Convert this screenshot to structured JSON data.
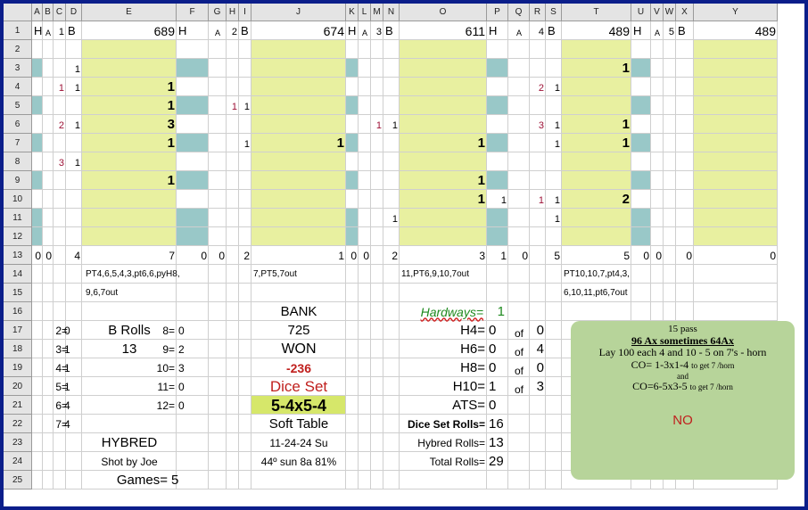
{
  "column_headers": [
    "A",
    "B",
    "C",
    "D",
    "E",
    "F",
    "G",
    "H",
    "I",
    "J",
    "K",
    "L",
    "M",
    "N",
    "O",
    "P",
    "Q",
    "R",
    "S",
    "T",
    "U",
    "V",
    "W",
    "X",
    "Y"
  ],
  "row_headers": [
    "1",
    "2",
    "3",
    "4",
    "5",
    "6",
    "7",
    "8",
    "9",
    "10",
    "11",
    "12",
    "13",
    "14",
    "15",
    "16",
    "17",
    "18",
    "19",
    "20",
    "21",
    "22",
    "23",
    "24",
    "25"
  ],
  "colors": {
    "frame": "#0b1e8a",
    "yellow_fill": "#e8f0a0",
    "teal_fill": "#99c8c8",
    "green_fill": "#d6e76a",
    "note_fill": "#b7d49a",
    "red_text": "#c0201e",
    "maroon_text": "#9c1035",
    "hardways_green": "#1f8a1f"
  },
  "header_row": {
    "section1": {
      "h": "H",
      "a": "A",
      "a_val": "1",
      "b": "B",
      "total": "689"
    },
    "section2": {
      "h": "H",
      "a": "A",
      "a_val": "2",
      "b": "B",
      "total": "674"
    },
    "section3": {
      "h": "H",
      "a": "A",
      "a_val": "3",
      "b": "B",
      "total": "611"
    },
    "section4": {
      "h": "H",
      "a": "A",
      "a_val": "4",
      "b": "B",
      "total": "489"
    },
    "section5": {
      "h": "H",
      "a": "A",
      "a_val": "5",
      "b": "B",
      "total": "489"
    }
  },
  "grid_values": [
    {
      "cell": "D3",
      "v": "1"
    },
    {
      "cell": "T3",
      "v": "1"
    },
    {
      "cell": "C4",
      "v": "1"
    },
    {
      "cell": "D4",
      "v": "1"
    },
    {
      "cell": "E4",
      "v": "1"
    },
    {
      "cell": "R4",
      "v": "2"
    },
    {
      "cell": "S4",
      "v": "1"
    },
    {
      "cell": "E5",
      "v": "1"
    },
    {
      "cell": "H5",
      "v": "1"
    },
    {
      "cell": "I5",
      "v": "1"
    },
    {
      "cell": "C6",
      "v": "2"
    },
    {
      "cell": "D6",
      "v": "1"
    },
    {
      "cell": "E6",
      "v": "3"
    },
    {
      "cell": "M6",
      "v": "1"
    },
    {
      "cell": "N6",
      "v": "1"
    },
    {
      "cell": "R6",
      "v": "3"
    },
    {
      "cell": "S6",
      "v": "1"
    },
    {
      "cell": "T6",
      "v": "1"
    },
    {
      "cell": "E7",
      "v": "1"
    },
    {
      "cell": "I7",
      "v": "1"
    },
    {
      "cell": "J7",
      "v": "1"
    },
    {
      "cell": "O7",
      "v": "1"
    },
    {
      "cell": "S7",
      "v": "1"
    },
    {
      "cell": "T7",
      "v": "1"
    },
    {
      "cell": "C8",
      "v": "3"
    },
    {
      "cell": "D8",
      "v": "1"
    },
    {
      "cell": "E9",
      "v": "1"
    },
    {
      "cell": "O9",
      "v": "1"
    },
    {
      "cell": "O10",
      "v": "1"
    },
    {
      "cell": "P10",
      "v": "1"
    },
    {
      "cell": "R10",
      "v": "1"
    },
    {
      "cell": "S10",
      "v": "1"
    },
    {
      "cell": "T10",
      "v": "2"
    },
    {
      "cell": "N11",
      "v": "1"
    },
    {
      "cell": "S11",
      "v": "1"
    }
  ],
  "totals_row": {
    "A": "0",
    "B": "0",
    "D": "4",
    "E": "7",
    "F": "0",
    "G": "0",
    "I": "2",
    "J": "1",
    "K": "0",
    "L": "0",
    "N": "2",
    "O": "3",
    "P": "1",
    "Q": "0",
    "S": "5",
    "T": "5",
    "U": "0",
    "V": "0",
    "X": "0",
    "Y": "0"
  },
  "sequences": {
    "s1_line1": "PT4,6,5,4,3,pt6,6,pyH8,",
    "s1_line2": "9,6,7out",
    "s2_line1": "7,PT5,7out",
    "s3_line1": "11,PT6,9,10,7out",
    "s4_line1": "PT10,10,7,pt4,3,",
    "s4_line2": "6,10,11,pt6,7out"
  },
  "roll_counts_left": [
    {
      "label": "2=",
      "value": "0"
    },
    {
      "label": "3=",
      "value": "1"
    },
    {
      "label": "4=",
      "value": "1"
    },
    {
      "label": "5=",
      "value": "1"
    },
    {
      "label": "6=",
      "value": "4"
    },
    {
      "label": "7=",
      "value": "4"
    }
  ],
  "roll_counts_right": [
    {
      "label": "8=",
      "value": "0"
    },
    {
      "label": "9=",
      "value": "2"
    },
    {
      "label": "10=",
      "value": "3"
    },
    {
      "label": "11=",
      "value": "0"
    },
    {
      "label": "12=",
      "value": "0"
    }
  ],
  "b_rolls": {
    "label": "B Rolls",
    "value": "13"
  },
  "hybred": "HYBRED",
  "shooter": "Shot by Joe",
  "games": {
    "label": "Games=",
    "value": "5"
  },
  "center": {
    "bank_label": "BANK",
    "bank_value": "725",
    "won_label": "WON",
    "won_value": "-236",
    "dice_set_label": "Dice Set",
    "dice_set_value": "5-4x5-4",
    "table": "Soft Table",
    "date": "11-24-24 Su",
    "weather": "44º sun 8a 81%"
  },
  "hardways": {
    "title": "Hardways=",
    "total": "1",
    "of": "of",
    "rows": [
      {
        "label": "H4=",
        "value": "0",
        "of_value": "0"
      },
      {
        "label": "H6=",
        "value": "0",
        "of_value": "4"
      },
      {
        "label": "H8=",
        "value": "0",
        "of_value": "0"
      },
      {
        "label": "H10=",
        "value": "1",
        "of_value": "3"
      }
    ]
  },
  "ats": {
    "label": "ATS=",
    "value": "0"
  },
  "roll_totals": [
    {
      "label": "Dice Set Rolls=",
      "value": "16"
    },
    {
      "label": "Hybred Rolls=",
      "value": "13"
    },
    {
      "label": "Total Rolls=",
      "value": "29"
    }
  ],
  "note": {
    "line1": "15 pass",
    "line2": "96 Ax sometimes 64Ax",
    "line3": "Lay  100  each 4 and 10 - 5 on 7's - horn",
    "line4_main": "CO= 1-3x1-4",
    "line4_small": "to get 7 /horn",
    "line5": "and",
    "line6_main": "CO=6-5x3-5",
    "line6_small": "to get 7 /horn",
    "line7": "NO"
  }
}
